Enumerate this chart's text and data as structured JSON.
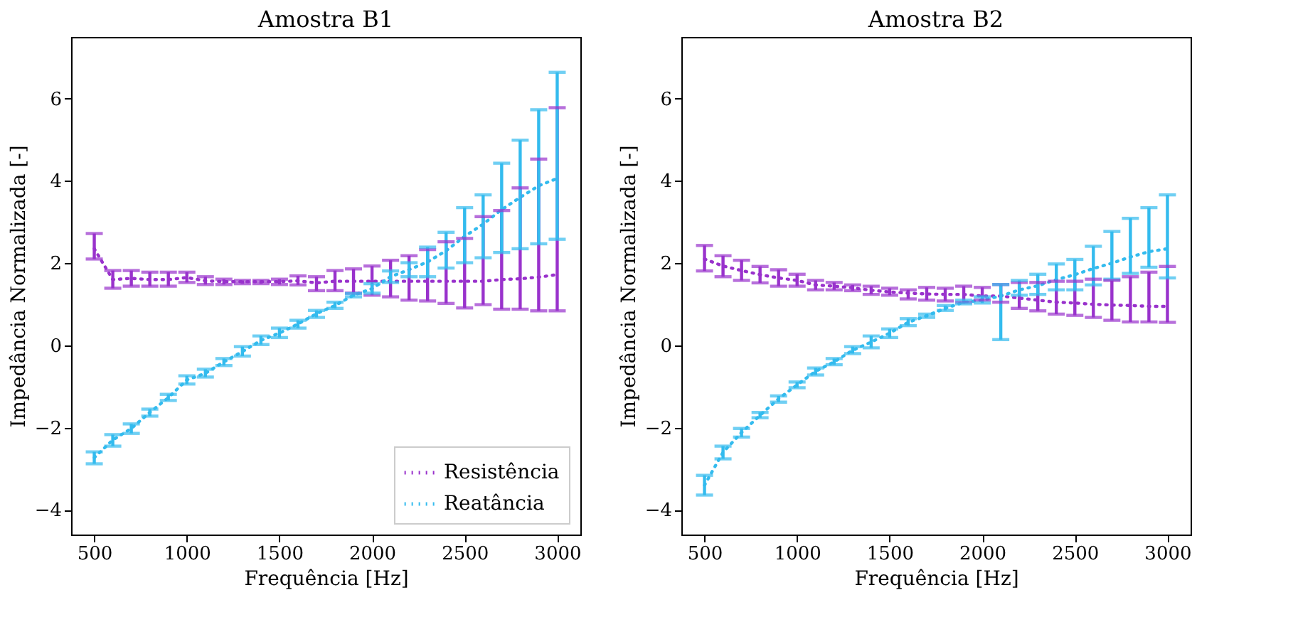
{
  "chart_data": [
    {
      "type": "line",
      "title": "Amostra B1",
      "xlabel": "Frequência [Hz]",
      "ylabel": "Impedância Normalizada [-]",
      "x": [
        500,
        600,
        700,
        800,
        900,
        1000,
        1100,
        1200,
        1300,
        1400,
        1500,
        1600,
        1700,
        1800,
        1900,
        2000,
        2100,
        2200,
        2300,
        2400,
        2500,
        2600,
        2700,
        2800,
        2900,
        3000
      ],
      "xlim": [
        375,
        3125
      ],
      "xticks": [
        500,
        1000,
        1500,
        2000,
        2500,
        3000
      ],
      "ylim": [
        -4.6,
        7.5
      ],
      "yticks": [
        -4,
        -2,
        0,
        2,
        4,
        6
      ],
      "grid": false,
      "legend": "bottom right",
      "marker": "none",
      "line_style": "dotted",
      "series": [
        {
          "name": "Resistência",
          "color": "#9932cc",
          "values": [
            2.35,
            1.6,
            1.63,
            1.6,
            1.6,
            1.65,
            1.57,
            1.55,
            1.55,
            1.55,
            1.55,
            1.57,
            1.52,
            1.56,
            1.56,
            1.56,
            1.56,
            1.56,
            1.56,
            1.56,
            1.56,
            1.56,
            1.6,
            1.62,
            1.66,
            1.72
          ],
          "errors": [
            [
              2.1,
              2.72
            ],
            [
              1.39,
              1.82
            ],
            [
              1.44,
              1.82
            ],
            [
              1.44,
              1.78
            ],
            [
              1.44,
              1.78
            ],
            [
              1.53,
              1.78
            ],
            [
              1.48,
              1.67
            ],
            [
              1.48,
              1.61
            ],
            [
              1.5,
              1.58
            ],
            [
              1.5,
              1.58
            ],
            [
              1.48,
              1.61
            ],
            [
              1.47,
              1.69
            ],
            [
              1.33,
              1.67
            ],
            [
              1.33,
              1.82
            ],
            [
              1.27,
              1.86
            ],
            [
              1.22,
              1.93
            ],
            [
              1.18,
              2.07
            ],
            [
              1.1,
              2.18
            ],
            [
              1.08,
              2.33
            ],
            [
              1.02,
              2.52
            ],
            [
              0.91,
              2.6
            ],
            [
              0.99,
              3.13
            ],
            [
              0.88,
              3.28
            ],
            [
              0.88,
              3.83
            ],
            [
              0.84,
              4.53
            ],
            [
              0.84,
              5.78
            ]
          ]
        },
        {
          "name": "Reatância",
          "color": "#33bbee",
          "values": [
            -2.73,
            -2.3,
            -2.02,
            -1.63,
            -1.27,
            -0.84,
            -0.68,
            -0.4,
            -0.15,
            0.12,
            0.3,
            0.52,
            0.77,
            0.97,
            1.22,
            1.38,
            1.67,
            1.84,
            2.03,
            2.3,
            2.65,
            2.95,
            3.3,
            3.6,
            3.88,
            4.06
          ],
          "errors": [
            [
              -2.88,
              -2.59
            ],
            [
              -2.45,
              -2.17
            ],
            [
              -2.14,
              -1.91
            ],
            [
              -1.72,
              -1.55
            ],
            [
              -1.34,
              -1.19
            ],
            [
              -0.94,
              -0.74
            ],
            [
              -0.77,
              -0.58
            ],
            [
              -0.49,
              -0.32
            ],
            [
              -0.26,
              -0.03
            ],
            [
              0.02,
              0.23
            ],
            [
              0.19,
              0.42
            ],
            [
              0.42,
              0.61
            ],
            [
              0.68,
              0.85
            ],
            [
              0.9,
              1.05
            ],
            [
              1.18,
              1.26
            ],
            [
              1.27,
              1.5
            ],
            [
              1.53,
              1.81
            ],
            [
              1.67,
              2.01
            ],
            [
              1.67,
              2.39
            ],
            [
              1.88,
              2.75
            ],
            [
              2.01,
              3.35
            ],
            [
              2.13,
              3.66
            ],
            [
              2.26,
              4.43
            ],
            [
              2.35,
              4.99
            ],
            [
              2.47,
              5.73
            ],
            [
              2.58,
              6.64
            ]
          ]
        }
      ]
    },
    {
      "type": "line",
      "title": "Amostra B2",
      "xlabel": "Frequência [Hz]",
      "ylabel": "Impedância Normalizada [-]",
      "x": [
        500,
        600,
        700,
        800,
        900,
        1000,
        1100,
        1200,
        1300,
        1400,
        1500,
        1600,
        1700,
        1800,
        1900,
        2000,
        2100,
        2200,
        2300,
        2400,
        2500,
        2600,
        2700,
        2800,
        2900,
        3000
      ],
      "xlim": [
        375,
        3125
      ],
      "xticks": [
        500,
        1000,
        1500,
        2000,
        2500,
        3000
      ],
      "ylim": [
        -4.6,
        7.5
      ],
      "yticks": [
        -4,
        -2,
        0,
        2,
        4,
        6
      ],
      "grid": false,
      "legend": false,
      "marker": "none",
      "line_style": "dotted",
      "series": [
        {
          "color": "#9932cc",
          "values": [
            2.1,
            1.93,
            1.82,
            1.72,
            1.64,
            1.58,
            1.47,
            1.44,
            1.4,
            1.34,
            1.3,
            1.27,
            1.25,
            1.24,
            1.24,
            1.2,
            1.2,
            1.15,
            1.1,
            1.05,
            1.03,
            1.0,
            0.98,
            0.97,
            0.95,
            0.95
          ],
          "errors": [
            [
              1.81,
              2.43
            ],
            [
              1.67,
              2.18
            ],
            [
              1.58,
              2.07
            ],
            [
              1.52,
              1.92
            ],
            [
              1.44,
              1.84
            ],
            [
              1.44,
              1.73
            ],
            [
              1.35,
              1.58
            ],
            [
              1.35,
              1.53
            ],
            [
              1.33,
              1.47
            ],
            [
              1.24,
              1.44
            ],
            [
              1.22,
              1.39
            ],
            [
              1.13,
              1.35
            ],
            [
              1.1,
              1.41
            ],
            [
              1.08,
              1.39
            ],
            [
              1.05,
              1.44
            ],
            [
              1.1,
              1.41
            ],
            [
              1.05,
              1.48
            ],
            [
              0.9,
              1.53
            ],
            [
              0.84,
              1.53
            ],
            [
              0.76,
              1.56
            ],
            [
              0.73,
              1.56
            ],
            [
              0.68,
              1.61
            ],
            [
              0.61,
              1.58
            ],
            [
              0.57,
              1.67
            ],
            [
              0.57,
              1.78
            ],
            [
              0.56,
              1.92
            ]
          ]
        },
        {
          "color": "#33bbee",
          "values": [
            -3.4,
            -2.6,
            -2.12,
            -1.7,
            -1.3,
            -0.96,
            -0.63,
            -0.4,
            -0.12,
            0.08,
            0.3,
            0.56,
            0.72,
            0.9,
            1.05,
            1.1,
            1.2,
            1.35,
            1.45,
            1.6,
            1.72,
            1.87,
            2.0,
            2.15,
            2.28,
            2.35
          ],
          "errors": [
            [
              -3.64,
              -3.16
            ],
            [
              -2.76,
              -2.45
            ],
            [
              -2.23,
              -2.02
            ],
            [
              -1.76,
              -1.63
            ],
            [
              -1.38,
              -1.23
            ],
            [
              -1.03,
              -0.89
            ],
            [
              -0.72,
              -0.55
            ],
            [
              -0.47,
              -0.32
            ],
            [
              -0.2,
              -0.03
            ],
            [
              -0.06,
              0.23
            ],
            [
              0.19,
              0.4
            ],
            [
              0.48,
              0.65
            ],
            [
              0.68,
              0.76
            ],
            [
              0.85,
              0.97
            ],
            [
              1.01,
              1.1
            ],
            [
              1.03,
              1.18
            ],
            [
              0.14,
              1.48
            ],
            [
              1.22,
              1.58
            ],
            [
              1.24,
              1.73
            ],
            [
              1.35,
              1.98
            ],
            [
              1.35,
              2.09
            ],
            [
              1.47,
              2.41
            ],
            [
              1.61,
              2.77
            ],
            [
              1.75,
              3.09
            ],
            [
              1.9,
              3.35
            ],
            [
              1.64,
              3.66
            ]
          ]
        }
      ]
    }
  ]
}
